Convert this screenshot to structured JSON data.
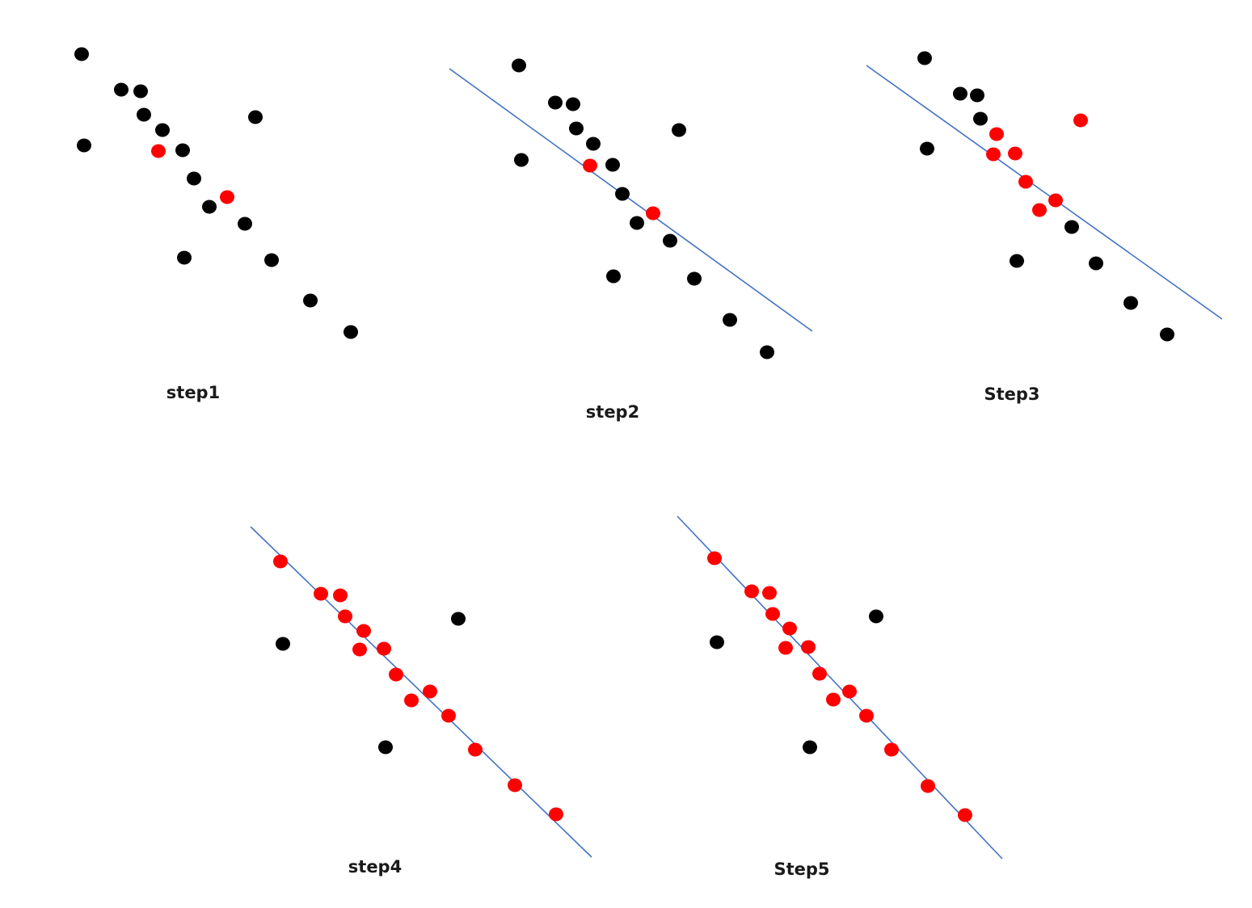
{
  "colors": {
    "inlier": "#ff0000",
    "outlier": "#000000",
    "fit_line": "#4472c4",
    "background": "#ffffff"
  },
  "panels": [
    {
      "label": "step1",
      "has_fit_line": false,
      "points": [
        {
          "id": 1,
          "status": "outlier"
        },
        {
          "id": 2,
          "status": "outlier"
        },
        {
          "id": 3,
          "status": "outlier"
        },
        {
          "id": 4,
          "status": "outlier"
        },
        {
          "id": 5,
          "status": "outlier"
        },
        {
          "id": 6,
          "status": "outlier"
        },
        {
          "id": 7,
          "status": "inlier"
        },
        {
          "id": 8,
          "status": "outlier"
        },
        {
          "id": 9,
          "status": "outlier"
        },
        {
          "id": 10,
          "status": "outlier"
        },
        {
          "id": 11,
          "status": "inlier"
        },
        {
          "id": 12,
          "status": "outlier"
        },
        {
          "id": 13,
          "status": "outlier"
        },
        {
          "id": 14,
          "status": "outlier"
        },
        {
          "id": 15,
          "status": "outlier"
        },
        {
          "id": 16,
          "status": "outlier"
        },
        {
          "id": 17,
          "status": "outlier"
        }
      ]
    },
    {
      "label": "step2",
      "has_fit_line": true,
      "points": [
        {
          "id": 1,
          "status": "outlier"
        },
        {
          "id": 2,
          "status": "outlier"
        },
        {
          "id": 3,
          "status": "outlier"
        },
        {
          "id": 4,
          "status": "outlier"
        },
        {
          "id": 5,
          "status": "outlier"
        },
        {
          "id": 6,
          "status": "outlier"
        },
        {
          "id": 7,
          "status": "inlier"
        },
        {
          "id": 8,
          "status": "outlier"
        },
        {
          "id": 9,
          "status": "outlier"
        },
        {
          "id": 10,
          "status": "outlier"
        },
        {
          "id": 11,
          "status": "inlier"
        },
        {
          "id": 12,
          "status": "outlier"
        },
        {
          "id": 13,
          "status": "outlier"
        },
        {
          "id": 14,
          "status": "outlier"
        },
        {
          "id": 15,
          "status": "outlier"
        },
        {
          "id": 16,
          "status": "outlier"
        },
        {
          "id": 17,
          "status": "outlier"
        }
      ]
    },
    {
      "label": "Step3",
      "has_fit_line": true,
      "points": [
        {
          "id": 1,
          "status": "outlier"
        },
        {
          "id": 2,
          "status": "outlier"
        },
        {
          "id": 3,
          "status": "outlier"
        },
        {
          "id": 4,
          "status": "outlier"
        },
        {
          "id": 5,
          "status": "outlier"
        },
        {
          "id": 6,
          "status": "inlier"
        },
        {
          "id": 7,
          "status": "inlier"
        },
        {
          "id": 8,
          "status": "inlier"
        },
        {
          "id": 9,
          "status": "inlier"
        },
        {
          "id": 10,
          "status": "inlier"
        },
        {
          "id": 11,
          "status": "inlier"
        },
        {
          "id": 12,
          "status": "inlier"
        },
        {
          "id": 13,
          "status": "outlier"
        },
        {
          "id": 14,
          "status": "outlier"
        },
        {
          "id": 15,
          "status": "outlier"
        },
        {
          "id": 16,
          "status": "outlier"
        },
        {
          "id": 17,
          "status": "outlier"
        }
      ]
    },
    {
      "label": "step4",
      "has_fit_line": true,
      "points": [
        {
          "id": 1,
          "status": "inlier"
        },
        {
          "id": 2,
          "status": "outlier"
        },
        {
          "id": 3,
          "status": "inlier"
        },
        {
          "id": 4,
          "status": "inlier"
        },
        {
          "id": 5,
          "status": "inlier"
        },
        {
          "id": 6,
          "status": "outlier"
        },
        {
          "id": 7,
          "status": "inlier"
        },
        {
          "id": 8,
          "status": "inlier"
        },
        {
          "id": 9,
          "status": "inlier"
        },
        {
          "id": 10,
          "status": "inlier"
        },
        {
          "id": 11,
          "status": "inlier"
        },
        {
          "id": 12,
          "status": "inlier"
        },
        {
          "id": 13,
          "status": "inlier"
        },
        {
          "id": 14,
          "status": "outlier"
        },
        {
          "id": 15,
          "status": "inlier"
        },
        {
          "id": 16,
          "status": "inlier"
        },
        {
          "id": 17,
          "status": "inlier"
        }
      ]
    },
    {
      "label": "Step5",
      "has_fit_line": true,
      "points": [
        {
          "id": 1,
          "status": "inlier"
        },
        {
          "id": 2,
          "status": "outlier"
        },
        {
          "id": 3,
          "status": "inlier"
        },
        {
          "id": 4,
          "status": "inlier"
        },
        {
          "id": 5,
          "status": "inlier"
        },
        {
          "id": 6,
          "status": "outlier"
        },
        {
          "id": 7,
          "status": "inlier"
        },
        {
          "id": 8,
          "status": "inlier"
        },
        {
          "id": 9,
          "status": "inlier"
        },
        {
          "id": 10,
          "status": "inlier"
        },
        {
          "id": 11,
          "status": "inlier"
        },
        {
          "id": 12,
          "status": "inlier"
        },
        {
          "id": 13,
          "status": "inlier"
        },
        {
          "id": 14,
          "status": "outlier"
        },
        {
          "id": 15,
          "status": "inlier"
        },
        {
          "id": 16,
          "status": "inlier"
        },
        {
          "id": 17,
          "status": "inlier"
        }
      ]
    }
  ]
}
